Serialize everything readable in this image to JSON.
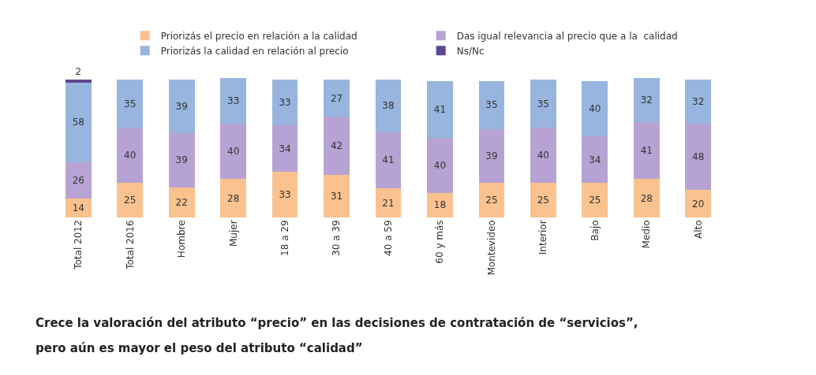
{
  "chart_data": {
    "type": "bar",
    "stacked": true,
    "data_labels": true,
    "legend": "top",
    "categories": [
      "Total 2012",
      "Total 2016",
      "Hombre",
      "Mujer",
      "18 a 29",
      "30 a 39",
      "40 a 59",
      "60 y más",
      "Montevideo",
      "Interior",
      "Bajo",
      "Medio",
      "Alto"
    ],
    "series": [
      {
        "name": "Priorizás el precio en relación a la calidad",
        "color": "#f9c28e",
        "values": [
          14,
          25,
          22,
          28,
          33,
          31,
          21,
          18,
          25,
          25,
          25,
          28,
          20
        ]
      },
      {
        "name": "Das igual relevancia al precio que a la  calidad",
        "color": "#b7a3d3",
        "values": [
          26,
          40,
          39,
          40,
          34,
          42,
          41,
          40,
          39,
          40,
          34,
          41,
          48
        ]
      },
      {
        "name": "Priorizás la calidad en relación al precio",
        "color": "#97b5de",
        "values": [
          58,
          35,
          39,
          33,
          33,
          27,
          38,
          41,
          35,
          35,
          40,
          32,
          32
        ]
      },
      {
        "name": "Ns/Nc",
        "color": "#5e4590",
        "values": [
          2,
          null,
          null,
          null,
          null,
          null,
          null,
          null,
          null,
          null,
          null,
          null,
          null
        ]
      }
    ],
    "annotations": [
      "Crece la valoración del atributo “precio” en las decisiones de contratación de “servicios”,",
      "pero aún es mayor el peso del atributo “calidad”"
    ]
  }
}
